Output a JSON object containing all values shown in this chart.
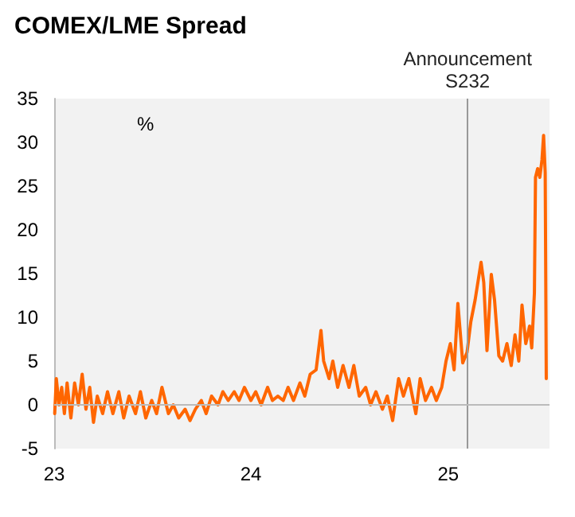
{
  "chart_data": {
    "type": "line",
    "title": "COMEX/LME Spread",
    "ylabel": "%",
    "x": [
      "2023-01-02",
      "2023-01-05",
      "2023-01-10",
      "2023-01-15",
      "2023-01-20",
      "2023-01-25",
      "2023-02-01",
      "2023-02-08",
      "2023-02-15",
      "2023-02-22",
      "2023-03-01",
      "2023-03-08",
      "2023-03-15",
      "2023-03-22",
      "2023-04-01",
      "2023-04-10",
      "2023-04-20",
      "2023-05-01",
      "2023-05-10",
      "2023-05-20",
      "2023-06-01",
      "2023-06-10",
      "2023-06-20",
      "2023-07-01",
      "2023-07-10",
      "2023-07-20",
      "2023-08-01",
      "2023-08-10",
      "2023-08-20",
      "2023-09-01",
      "2023-09-10",
      "2023-09-20",
      "2023-10-01",
      "2023-10-10",
      "2023-10-20",
      "2023-11-01",
      "2023-11-10",
      "2023-11-20",
      "2023-12-01",
      "2023-12-10",
      "2023-12-20",
      "2024-01-01",
      "2024-01-10",
      "2024-01-20",
      "2024-02-01",
      "2024-02-10",
      "2024-02-20",
      "2024-03-01",
      "2024-03-10",
      "2024-03-20",
      "2024-04-01",
      "2024-04-10",
      "2024-04-20",
      "2024-05-01",
      "2024-05-10",
      "2024-05-15",
      "2024-05-25",
      "2024-06-01",
      "2024-06-10",
      "2024-06-20",
      "2024-07-01",
      "2024-07-10",
      "2024-07-20",
      "2024-08-01",
      "2024-08-10",
      "2024-08-20",
      "2024-09-01",
      "2024-09-10",
      "2024-09-20",
      "2024-10-01",
      "2024-10-10",
      "2024-10-20",
      "2024-11-02",
      "2024-11-10",
      "2024-11-20",
      "2024-12-01",
      "2024-12-10",
      "2024-12-20",
      "2024-12-28",
      "2025-01-05",
      "2025-01-12",
      "2025-01-19",
      "2025-01-28",
      "2025-02-05",
      "2025-02-12",
      "2025-02-20",
      "2025-03-03",
      "2025-03-08",
      "2025-03-14",
      "2025-03-22",
      "2025-03-28",
      "2025-04-05",
      "2025-04-12",
      "2025-04-20",
      "2025-04-28",
      "2025-05-05",
      "2025-05-12",
      "2025-05-18",
      "2025-05-25",
      "2025-06-01",
      "2025-06-05",
      "2025-06-10",
      "2025-06-12",
      "2025-06-16",
      "2025-06-20",
      "2025-06-24",
      "2025-06-27",
      "2025-06-30",
      "2025-07-02"
    ],
    "series": [
      {
        "color": "#ff6600",
        "values": [
          -1,
          3,
          0,
          2,
          -1,
          2.5,
          -1.5,
          2.5,
          0,
          3.5,
          -0.5,
          2,
          -2,
          1,
          -1,
          1.5,
          -1,
          1.5,
          -1.5,
          1,
          -1,
          1.5,
          -1.5,
          0.5,
          -1,
          2,
          -1,
          0,
          -1.5,
          -0.5,
          -1.8,
          -0.5,
          0.5,
          -1,
          1,
          0,
          1.5,
          0.5,
          1.5,
          0.5,
          2,
          0.5,
          1.5,
          0,
          2,
          0.5,
          1,
          0.5,
          2,
          0.5,
          2.5,
          1,
          3.5,
          4,
          8.5,
          5,
          3,
          5,
          2,
          4.5,
          2,
          4.5,
          1,
          2,
          0,
          1.5,
          -0.5,
          1,
          -1.8,
          3,
          1,
          3,
          -1,
          3,
          0.5,
          2,
          0.5,
          2,
          5,
          7,
          4,
          11.6,
          4.8,
          6,
          9.5,
          12,
          16.3,
          14,
          6.2,
          14.9,
          12,
          5.6,
          5,
          7,
          4.5,
          8,
          5,
          11.4,
          7,
          9,
          6.5,
          12.8,
          26,
          27,
          26,
          28,
          30.8,
          26.5,
          3
        ]
      }
    ],
    "xlim": [
      "2023-01-01",
      "2025-07-08"
    ],
    "xticks": [
      {
        "value": "2023-01-01",
        "label": "23"
      },
      {
        "value": "2024-01-01",
        "label": "24"
      },
      {
        "value": "2025-01-01",
        "label": "25"
      }
    ],
    "ylim": [
      -5,
      35
    ],
    "yticks": [
      -5,
      0,
      5,
      10,
      15,
      20,
      25,
      30,
      35
    ],
    "ref_lines": [
      {
        "axis": "x",
        "value": "2025-02-06",
        "label": "Announcement\nS232",
        "color": "#999999"
      },
      {
        "axis": "y",
        "value": 0,
        "color": "#bbbbbb"
      }
    ],
    "marker": "none",
    "line_style": "solid"
  }
}
